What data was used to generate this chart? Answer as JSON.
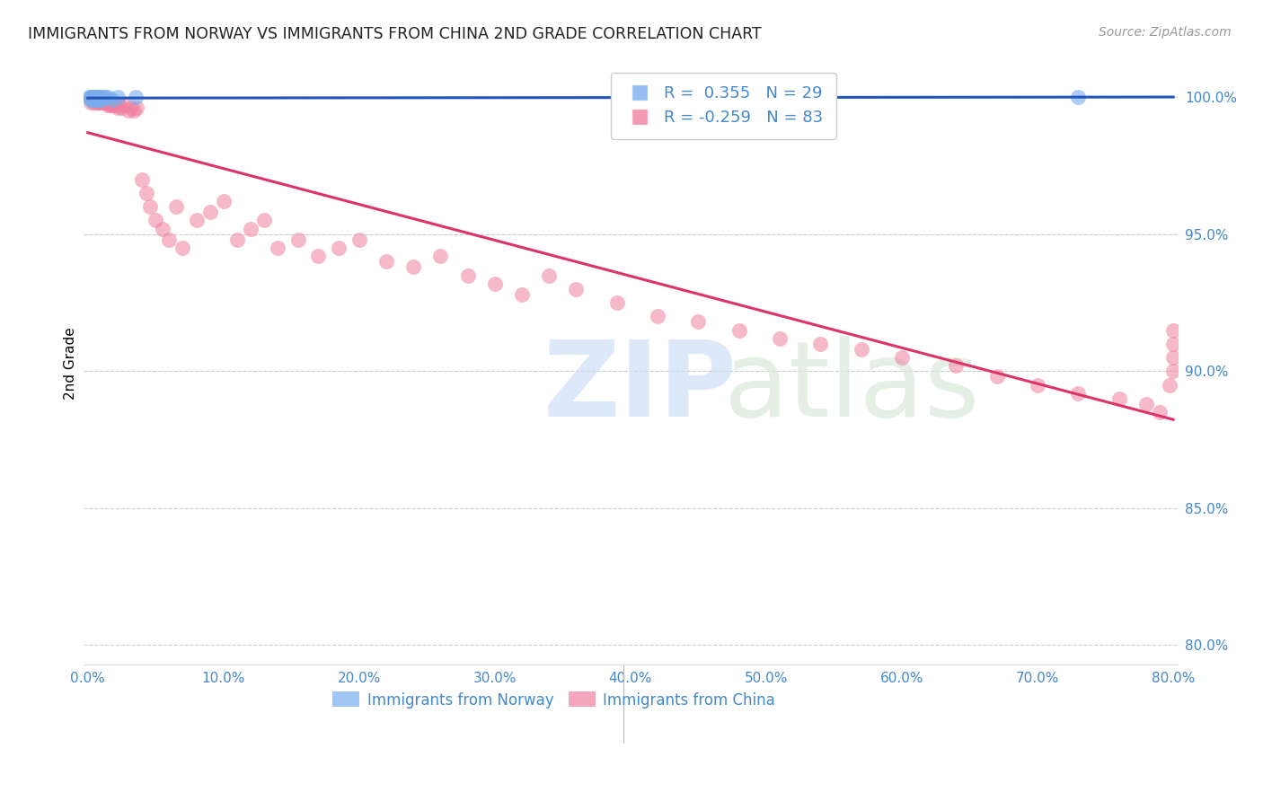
{
  "title": "IMMIGRANTS FROM NORWAY VS IMMIGRANTS FROM CHINA 2ND GRADE CORRELATION CHART",
  "source": "Source: ZipAtlas.com",
  "ylabel": "2nd Grade",
  "xlim": [
    -0.003,
    0.803
  ],
  "ylim": [
    0.793,
    1.013
  ],
  "yticks": [
    0.8,
    0.85,
    0.9,
    0.95,
    1.0
  ],
  "ytick_labels": [
    "80.0%",
    "85.0%",
    "90.0%",
    "95.0%",
    "100.0%"
  ],
  "xticks": [
    0.0,
    0.1,
    0.2,
    0.3,
    0.4,
    0.5,
    0.6,
    0.7,
    0.8
  ],
  "xtick_labels": [
    "0.0%",
    "10.0%",
    "20.0%",
    "30.0%",
    "40.0%",
    "50.0%",
    "60.0%",
    "70.0%",
    "80.0%"
  ],
  "norway_R": 0.355,
  "norway_N": 29,
  "china_R": -0.259,
  "china_N": 83,
  "norway_color": "#7aadee",
  "china_color": "#f080a0",
  "norway_trend_color": "#2255bb",
  "china_trend_color": "#dd3366",
  "background_color": "#ffffff",
  "grid_color": "#cccccc",
  "axis_label_color": "#4488cc",
  "norway_x": [
    0.001,
    0.002,
    0.002,
    0.003,
    0.003,
    0.003,
    0.004,
    0.004,
    0.004,
    0.005,
    0.005,
    0.005,
    0.005,
    0.006,
    0.006,
    0.006,
    0.007,
    0.007,
    0.008,
    0.008,
    0.009,
    0.01,
    0.011,
    0.013,
    0.015,
    0.018,
    0.022,
    0.035,
    0.73
  ],
  "norway_y": [
    1.0,
    0.999,
    1.0,
    0.999,
    1.0,
    1.0,
    0.999,
    1.0,
    1.0,
    0.999,
    1.0,
    1.0,
    1.0,
    0.999,
    1.0,
    1.0,
    0.999,
    1.0,
    0.999,
    1.0,
    1.0,
    0.999,
    1.0,
    1.0,
    1.0,
    0.999,
    1.0,
    1.0,
    1.0
  ],
  "china_x": [
    0.002,
    0.003,
    0.003,
    0.004,
    0.004,
    0.005,
    0.005,
    0.006,
    0.006,
    0.007,
    0.007,
    0.008,
    0.008,
    0.009,
    0.009,
    0.01,
    0.01,
    0.011,
    0.012,
    0.012,
    0.013,
    0.014,
    0.015,
    0.016,
    0.017,
    0.018,
    0.019,
    0.02,
    0.022,
    0.023,
    0.025,
    0.027,
    0.03,
    0.032,
    0.034,
    0.036,
    0.04,
    0.043,
    0.046,
    0.05,
    0.055,
    0.06,
    0.065,
    0.07,
    0.08,
    0.09,
    0.1,
    0.11,
    0.12,
    0.13,
    0.14,
    0.155,
    0.17,
    0.185,
    0.2,
    0.22,
    0.24,
    0.26,
    0.28,
    0.3,
    0.32,
    0.34,
    0.36,
    0.39,
    0.42,
    0.45,
    0.48,
    0.51,
    0.54,
    0.57,
    0.6,
    0.64,
    0.67,
    0.7,
    0.73,
    0.76,
    0.78,
    0.79,
    0.797,
    0.8,
    0.8,
    0.8,
    0.8
  ],
  "china_y": [
    0.998,
    0.999,
    1.0,
    0.998,
    0.999,
    0.999,
    1.0,
    0.998,
    0.999,
    0.998,
    0.999,
    0.998,
    0.999,
    0.999,
    0.998,
    0.999,
    0.998,
    0.998,
    0.998,
    0.999,
    0.998,
    0.998,
    0.997,
    0.997,
    0.998,
    0.997,
    0.997,
    0.997,
    0.996,
    0.997,
    0.996,
    0.997,
    0.995,
    0.996,
    0.995,
    0.996,
    0.97,
    0.965,
    0.96,
    0.955,
    0.952,
    0.948,
    0.96,
    0.945,
    0.955,
    0.958,
    0.962,
    0.948,
    0.952,
    0.955,
    0.945,
    0.948,
    0.942,
    0.945,
    0.948,
    0.94,
    0.938,
    0.942,
    0.935,
    0.932,
    0.928,
    0.935,
    0.93,
    0.925,
    0.92,
    0.918,
    0.915,
    0.912,
    0.91,
    0.908,
    0.905,
    0.902,
    0.898,
    0.895,
    0.892,
    0.89,
    0.888,
    0.885,
    0.895,
    0.9,
    0.905,
    0.91,
    0.915
  ]
}
